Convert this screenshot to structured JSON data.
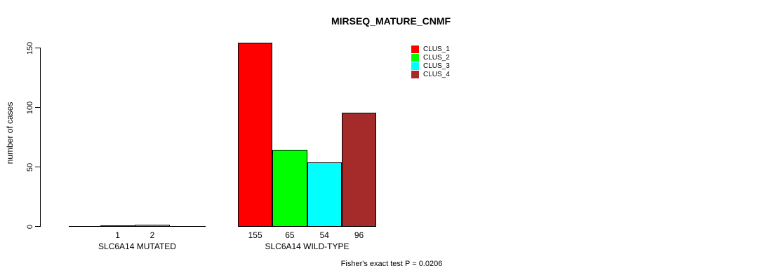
{
  "chart_data": {
    "type": "bar",
    "title": "MIRSEQ_MATURE_CNMF",
    "ylabel": "number of cases",
    "xlabel": "",
    "ylim": [
      0,
      150
    ],
    "yticks": [
      0,
      50,
      100,
      150
    ],
    "grid": false,
    "legend_position": "top-right",
    "bar_value_labels_shown": true,
    "categories": [
      "SLC6A14 MUTATED",
      "SLC6A14 WILD-TYPE"
    ],
    "legend": [
      {
        "label": "CLUS_1",
        "color": "#FF0000"
      },
      {
        "label": "CLUS_2",
        "color": "#00FF00"
      },
      {
        "label": "CLUS_3",
        "color": "#00FFFF"
      },
      {
        "label": "CLUS_4",
        "color": "#A52A2A"
      }
    ],
    "groups": [
      {
        "category": "SLC6A14 MUTATED",
        "bars": [
          {
            "cluster": "CLUS_1",
            "value": 1,
            "color": "#FF0000"
          },
          {
            "cluster": "CLUS_3",
            "value": 2,
            "color": "#00FFFF"
          }
        ]
      },
      {
        "category": "SLC6A14 WILD-TYPE",
        "bars": [
          {
            "cluster": "CLUS_1",
            "value": 155,
            "color": "#FF0000"
          },
          {
            "cluster": "CLUS_2",
            "value": 65,
            "color": "#00FF00"
          },
          {
            "cluster": "CLUS_3",
            "value": 54,
            "color": "#00FFFF"
          },
          {
            "cluster": "CLUS_4",
            "value": 96,
            "color": "#A52A2A"
          }
        ]
      }
    ],
    "annotation": "Fisher's exact test P = 0.0206"
  }
}
